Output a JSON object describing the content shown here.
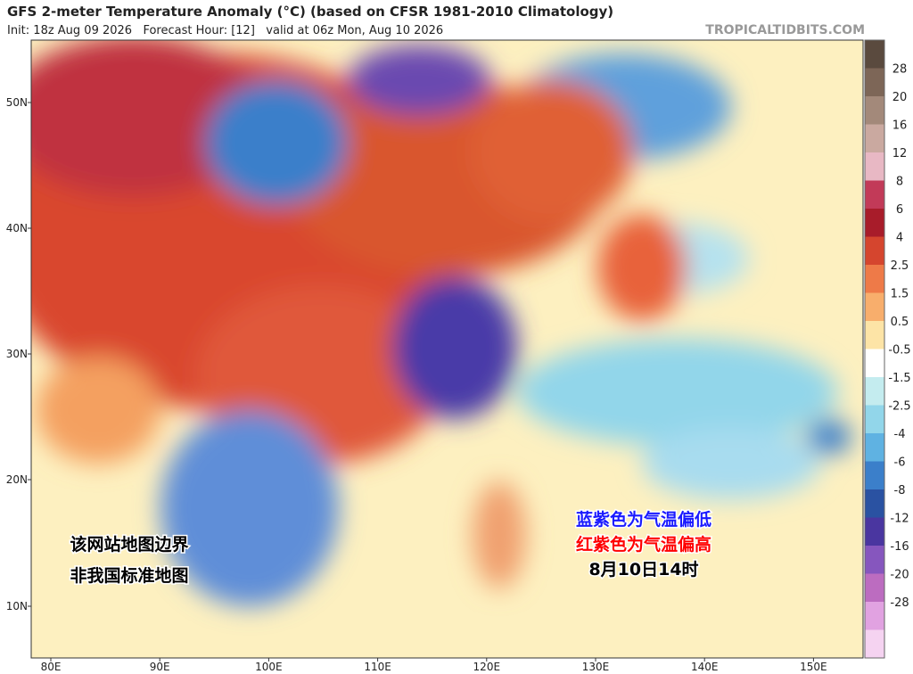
{
  "header": {
    "title": "GFS 2-meter Temperature Anomaly (°C) (based on CFSR 1981-2010 Climatology)",
    "subtitle": "Init: 18z Aug 09 2026   Forecast Hour: [12]   valid at 06z Mon, Aug 10 2026",
    "site": "TROPICALTIDBITS.COM"
  },
  "map": {
    "lat_labels": [
      "50N",
      "40N",
      "30N",
      "20N",
      "10N"
    ],
    "lon_labels": [
      "80E",
      "90E",
      "100E",
      "110E",
      "120E",
      "130E",
      "140E",
      "150E"
    ]
  },
  "colorbar": {
    "labels": [
      "28",
      "20",
      "16",
      "12",
      "8",
      "6",
      "4",
      "2.5",
      "1.5",
      "0.5",
      "-0.5",
      "-1.5",
      "-2.5",
      "-4",
      "-6",
      "-8",
      "-12",
      "-16",
      "-20",
      "-28"
    ],
    "colors": [
      "#5a4a3e",
      "#7d6657",
      "#a3897a",
      "#caa9a0",
      "#e8b8c4",
      "#c23a58",
      "#a81c2a",
      "#d5452e",
      "#ee7a48",
      "#f8ae6c",
      "#fde4a6",
      "#ffffff",
      "#c4ecef",
      "#92d6ea",
      "#5fb2e2",
      "#3b7fca",
      "#2a52a2",
      "#4a36a0",
      "#8656be",
      "#bc6cc0",
      "#e1a2e1",
      "#f5d3f1"
    ]
  },
  "annotations": {
    "note_left": [
      "该网站地图边界",
      "非我国标准地图"
    ],
    "note_right": [
      "蓝紫色为气温偏低",
      "红紫色为气温偏高",
      "8月10日14时"
    ]
  }
}
